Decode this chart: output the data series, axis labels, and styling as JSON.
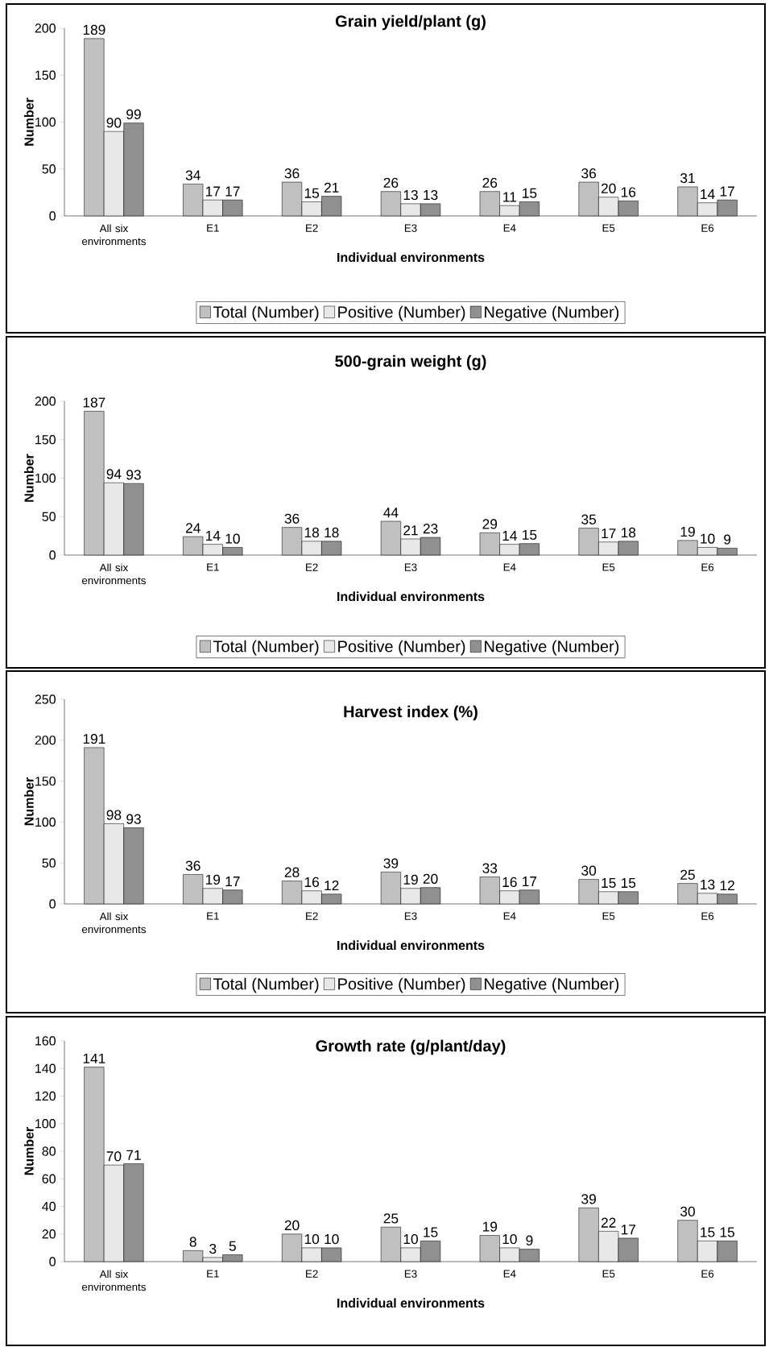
{
  "chart_data": [
    {
      "type": "bar",
      "title": "Grain yield/plant (g)",
      "xlabel": "Individual environments",
      "ylabel": "Number",
      "categories": [
        "All six environments",
        "E1",
        "E2",
        "E3",
        "E4",
        "E5",
        "E6"
      ],
      "series": [
        {
          "name": "Total (Number)",
          "color": "#c0c0c0",
          "values": [
            189,
            34,
            36,
            26,
            26,
            36,
            31
          ]
        },
        {
          "name": "Positive (Number)",
          "color": "#e8e8e8",
          "values": [
            90,
            17,
            15,
            13,
            11,
            20,
            14
          ]
        },
        {
          "name": "Negative (Number)",
          "color": "#909090",
          "values": [
            99,
            17,
            21,
            13,
            15,
            16,
            17
          ]
        }
      ],
      "ylim": [
        0,
        200
      ],
      "yticks": [
        0,
        50,
        100,
        150,
        200
      ],
      "data_labels": true,
      "legend": "bottom",
      "grid": false
    },
    {
      "type": "bar",
      "title": "500-grain weight (g)",
      "xlabel": "Individual environments",
      "ylabel": "Number",
      "categories": [
        "All six environments",
        "E1",
        "E2",
        "E3",
        "E4",
        "E5",
        "E6"
      ],
      "series": [
        {
          "name": "Total (Number)",
          "color": "#c0c0c0",
          "values": [
            187,
            24,
            36,
            44,
            29,
            35,
            19
          ]
        },
        {
          "name": "Positive (Number)",
          "color": "#e8e8e8",
          "values": [
            94,
            14,
            18,
            21,
            14,
            17,
            10
          ]
        },
        {
          "name": "Negative (Number)",
          "color": "#909090",
          "values": [
            93,
            10,
            18,
            23,
            15,
            18,
            9
          ]
        }
      ],
      "ylim": [
        0,
        200
      ],
      "yticks": [
        0,
        50,
        100,
        150,
        200
      ],
      "data_labels": true,
      "legend": "bottom",
      "grid": false
    },
    {
      "type": "bar",
      "title": "Harvest index (%)",
      "xlabel": "Individual environments",
      "ylabel": "Number",
      "categories": [
        "All six environments",
        "E1",
        "E2",
        "E3",
        "E4",
        "E5",
        "E6"
      ],
      "series": [
        {
          "name": "Total (Number)",
          "color": "#c0c0c0",
          "values": [
            191,
            36,
            28,
            39,
            33,
            30,
            25
          ]
        },
        {
          "name": "Positive (Number)",
          "color": "#e8e8e8",
          "values": [
            98,
            19,
            16,
            19,
            16,
            15,
            13
          ]
        },
        {
          "name": "Negative (Number)",
          "color": "#909090",
          "values": [
            93,
            17,
            12,
            20,
            17,
            15,
            12
          ]
        }
      ],
      "ylim": [
        0,
        250
      ],
      "yticks": [
        0,
        50,
        100,
        150,
        200,
        250
      ],
      "data_labels": true,
      "legend": "bottom",
      "grid": false
    },
    {
      "type": "bar",
      "title": "Growth rate (g/plant/day)",
      "xlabel": "Individual environments",
      "ylabel": "Number",
      "categories": [
        "All six environments",
        "E1",
        "E2",
        "E3",
        "E4",
        "E5",
        "E6"
      ],
      "series": [
        {
          "color": "#c0c0c0",
          "values": [
            141,
            8,
            20,
            25,
            19,
            39,
            30
          ]
        },
        {
          "color": "#e8e8e8",
          "values": [
            70,
            3,
            10,
            10,
            10,
            22,
            15
          ]
        },
        {
          "color": "#909090",
          "values": [
            71,
            5,
            10,
            15,
            9,
            17,
            15
          ]
        }
      ],
      "ylim": [
        0,
        160
      ],
      "yticks": [
        0,
        20,
        40,
        60,
        80,
        100,
        120,
        140,
        160
      ],
      "data_labels": true,
      "legend": false,
      "grid": false
    }
  ]
}
